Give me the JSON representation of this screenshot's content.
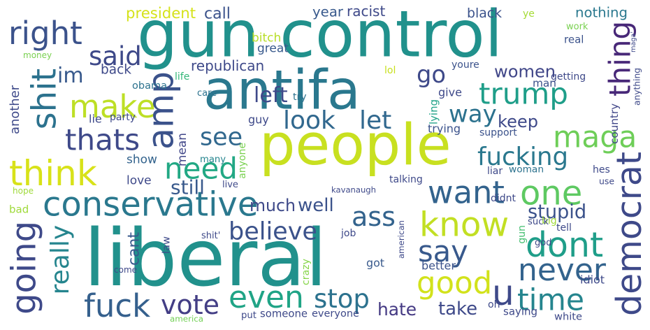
{
  "words": [
    {
      "text": "gun control",
      "color": "#21918c"
    },
    {
      "text": "antifa",
      "color": "#2a788e"
    },
    {
      "text": "people",
      "color": "#c8e020"
    },
    {
      "text": "liberal",
      "color": "#21918c"
    },
    {
      "text": "conservative",
      "color": "#2a788e"
    },
    {
      "text": "right",
      "color": "#3b528b"
    },
    {
      "text": "shit",
      "color": "#2c728e"
    },
    {
      "text": "think",
      "color": "#d8e219"
    },
    {
      "text": "said",
      "color": "#3e4989"
    },
    {
      "text": "make",
      "color": "#bddf26"
    },
    {
      "text": "im",
      "color": "#38598c"
    },
    {
      "text": "amp",
      "color": "#3b528b"
    },
    {
      "text": "thats",
      "color": "#3e4989"
    },
    {
      "text": "trump",
      "color": "#1f9e89"
    },
    {
      "text": "thing",
      "color": "#482878"
    },
    {
      "text": "maga",
      "color": "#6ece58"
    },
    {
      "text": "go",
      "color": "#3e4989"
    },
    {
      "text": "look",
      "color": "#31688e"
    },
    {
      "text": "let",
      "color": "#31688e"
    },
    {
      "text": "way",
      "color": "#2c728e"
    },
    {
      "text": "need",
      "color": "#22a884"
    },
    {
      "text": "see",
      "color": "#31688e"
    },
    {
      "text": "want",
      "color": "#33638d"
    },
    {
      "text": "one",
      "color": "#5ec962"
    },
    {
      "text": "fucking",
      "color": "#2a788e"
    },
    {
      "text": "democrat",
      "color": "#3e4989"
    },
    {
      "text": "know",
      "color": "#c2df23"
    },
    {
      "text": "dont",
      "color": "#1f9e89"
    },
    {
      "text": "never",
      "color": "#33638d"
    },
    {
      "text": "say",
      "color": "#38598c"
    },
    {
      "text": "good",
      "color": "#d2e21b"
    },
    {
      "text": "going",
      "color": "#3e4989"
    },
    {
      "text": "really",
      "color": "#25858e"
    },
    {
      "text": "ass",
      "color": "#33638d"
    },
    {
      "text": "believe",
      "color": "#3b528b"
    },
    {
      "text": "even",
      "color": "#20a486"
    },
    {
      "text": "stop",
      "color": "#2c728e"
    },
    {
      "text": "vote",
      "color": "#433e85"
    },
    {
      "text": "fuck",
      "color": "#35608d"
    },
    {
      "text": "time",
      "color": "#25858e"
    },
    {
      "text": "u",
      "color": "#3e4989"
    },
    {
      "text": "women",
      "color": "#404688"
    },
    {
      "text": "country",
      "color": "#404688"
    },
    {
      "text": "keep",
      "color": "#3e4989"
    },
    {
      "text": "stupid",
      "color": "#3b528b"
    },
    {
      "text": "still",
      "color": "#38598c"
    },
    {
      "text": "much",
      "color": "#3e4989"
    },
    {
      "text": "well",
      "color": "#3b528b"
    },
    {
      "text": "hate",
      "color": "#443983"
    },
    {
      "text": "take",
      "color": "#3e4989"
    },
    {
      "text": "cant",
      "color": "#38598c"
    },
    {
      "text": "another",
      "color": "#3e4989"
    },
    {
      "text": "mean",
      "color": "#404688"
    },
    {
      "text": "left",
      "color": "#3e4989"
    },
    {
      "text": "call",
      "color": "#3b528b"
    },
    {
      "text": "president",
      "color": "#d5e21a"
    },
    {
      "text": "racist",
      "color": "#3e4989"
    },
    {
      "text": "year",
      "color": "#38598c"
    },
    {
      "text": "black",
      "color": "#3b528b"
    },
    {
      "text": "nothing",
      "color": "#2a788e"
    },
    {
      "text": "ye",
      "color": "#a5db36"
    },
    {
      "text": "work",
      "color": "#7ad151"
    },
    {
      "text": "real",
      "color": "#3b528b"
    },
    {
      "text": "maga'",
      "color": "#3e4989"
    },
    {
      "text": "bitch",
      "color": "#b8de29"
    },
    {
      "text": "great",
      "color": "#38598c"
    },
    {
      "text": "republican",
      "color": "#3e4989"
    },
    {
      "text": "back",
      "color": "#3e4989"
    },
    {
      "text": "money",
      "color": "#7ad151"
    },
    {
      "text": "life",
      "color": "#35b779"
    },
    {
      "text": "obama",
      "color": "#2c728e"
    },
    {
      "text": "lol",
      "color": "#c8e020"
    },
    {
      "text": "youre",
      "color": "#3b528b"
    },
    {
      "text": "man",
      "color": "#3b528b"
    },
    {
      "text": "getting",
      "color": "#3e4989"
    },
    {
      "text": "anything",
      "color": "#3e4989"
    },
    {
      "text": "give",
      "color": "#3e4989"
    },
    {
      "text": "lying",
      "color": "#1fa187"
    },
    {
      "text": "try",
      "color": "#2c728e"
    },
    {
      "text": "care",
      "color": "#2c728e"
    },
    {
      "text": "party",
      "color": "#3e4989"
    },
    {
      "text": "lie",
      "color": "#3e4989"
    },
    {
      "text": "guy",
      "color": "#3e4989"
    },
    {
      "text": "trying",
      "color": "#3b528b"
    },
    {
      "text": "support",
      "color": "#3b528b"
    },
    {
      "text": "show",
      "color": "#33638d"
    },
    {
      "text": "many",
      "color": "#25858e"
    },
    {
      "text": "anyone",
      "color": "#7ad151"
    },
    {
      "text": "woman",
      "color": "#2c728e"
    },
    {
      "text": "liar",
      "color": "#3e4989"
    },
    {
      "text": "hes",
      "color": "#3e4989"
    },
    {
      "text": "use",
      "color": "#3e4989"
    },
    {
      "text": "love",
      "color": "#3e4989"
    },
    {
      "text": "live",
      "color": "#3e4989"
    },
    {
      "text": "talking",
      "color": "#3e4989"
    },
    {
      "text": "kavanaugh",
      "color": "#3e4989"
    },
    {
      "text": "hope",
      "color": "#9fda3a"
    },
    {
      "text": "bad",
      "color": "#9fda3a"
    },
    {
      "text": "american",
      "color": "#3e4989"
    },
    {
      "text": "didnt",
      "color": "#3e4989"
    },
    {
      "text": "big",
      "color": "#a0da39"
    },
    {
      "text": "shit'",
      "color": "#3e4989"
    },
    {
      "text": "law",
      "color": "#3e4989"
    },
    {
      "text": "job",
      "color": "#3e4989"
    },
    {
      "text": "suck",
      "color": "#3e4989"
    },
    {
      "text": "tell",
      "color": "#3e4989"
    },
    {
      "text": "god",
      "color": "#3e4989"
    },
    {
      "text": "gun",
      "color": "#44bf70"
    },
    {
      "text": "better",
      "color": "#3b528b"
    },
    {
      "text": "got",
      "color": "#38598c"
    },
    {
      "text": "come",
      "color": "#3e4989"
    },
    {
      "text": "crazy",
      "color": "#86d549"
    },
    {
      "text": "idiot",
      "color": "#3e4989"
    },
    {
      "text": "oh",
      "color": "#3e4989"
    },
    {
      "text": "saying",
      "color": "#3e4989"
    },
    {
      "text": "white",
      "color": "#3e4989"
    },
    {
      "text": "america",
      "color": "#73d056"
    },
    {
      "text": "put",
      "color": "#3e4989"
    },
    {
      "text": "someone",
      "color": "#3e4989"
    },
    {
      "text": "everyone",
      "color": "#3e4989"
    }
  ]
}
